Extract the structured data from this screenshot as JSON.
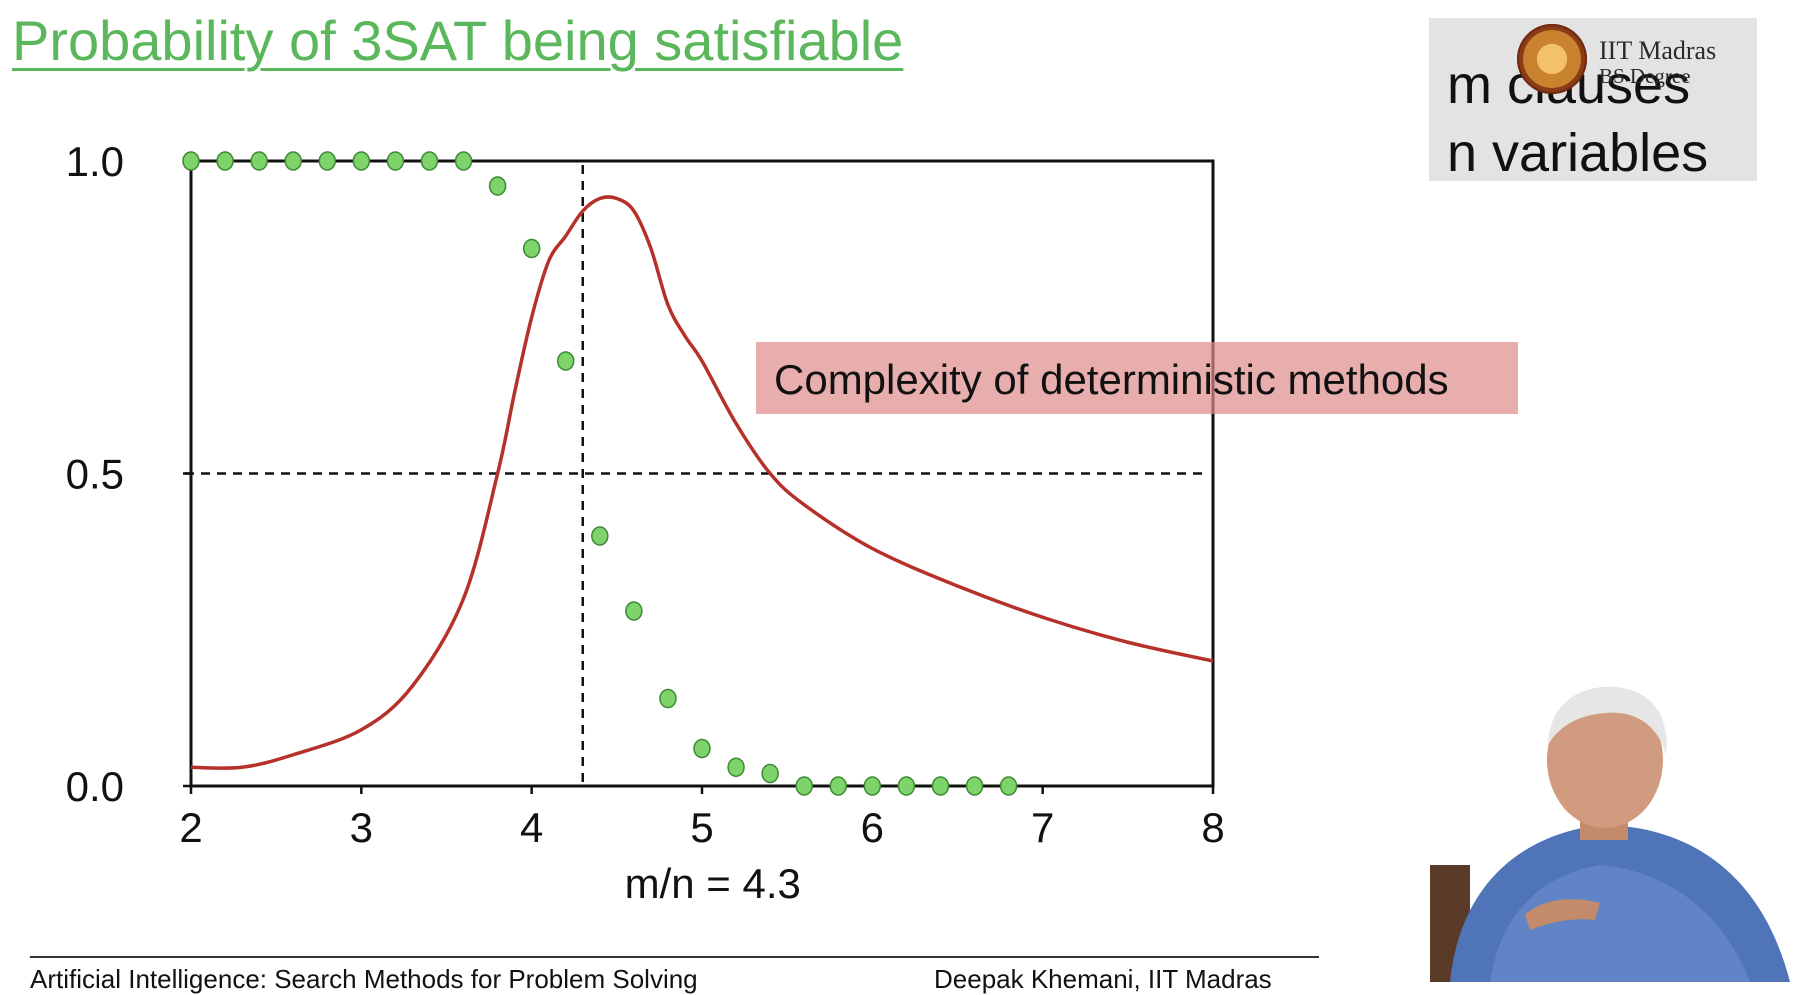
{
  "slide": {
    "title": "Probability of 3SAT being satisfiable",
    "legend": {
      "line1": "m clauses",
      "line2": "n variables"
    },
    "watermark": {
      "line1": "IIT Madras",
      "line2": "BS Degree"
    },
    "callout": "Complexity of deterministic methods",
    "footer": {
      "left": "Artificial Intelligence: Search Methods for Problem Solving",
      "right": "Deepak Khemani, IIT Madras"
    }
  },
  "chart_data": {
    "type": "scatter",
    "title": "Probability of 3SAT being satisfiable",
    "xlabel": "",
    "ylabel": "",
    "xlim": [
      2,
      8
    ],
    "ylim": [
      0,
      1
    ],
    "x_ticks": [
      "2",
      "3",
      "4",
      "5",
      "6",
      "7",
      "8"
    ],
    "y_ticks": [
      "0.0",
      "0.5",
      "1.0"
    ],
    "threshold_x": 4.3,
    "threshold_label": "m/n = 4.3",
    "threshold_y": 0.5,
    "grid": false,
    "series": [
      {
        "type": "scatter",
        "color": "#7ed36a",
        "x": [
          2.0,
          2.2,
          2.4,
          2.6,
          2.8,
          3.0,
          3.2,
          3.4,
          3.6,
          3.8,
          4.0,
          4.2,
          4.4,
          4.6,
          4.8,
          5.0,
          5.2,
          5.4,
          5.6,
          5.8,
          6.0,
          6.2,
          6.4,
          6.6,
          6.8
        ],
        "y": [
          1.0,
          1.0,
          1.0,
          1.0,
          1.0,
          1.0,
          1.0,
          1.0,
          1.0,
          0.96,
          0.86,
          0.68,
          0.4,
          0.28,
          0.14,
          0.06,
          0.03,
          0.02,
          0.0,
          0.0,
          0.0,
          0.0,
          0.0,
          0.0,
          0.0
        ]
      },
      {
        "type": "line",
        "color": "#b5312a",
        "x": [
          2.0,
          2.3,
          2.6,
          3.0,
          3.3,
          3.6,
          3.8,
          3.9,
          4.0,
          4.1,
          4.2,
          4.3,
          4.4,
          4.5,
          4.6,
          4.7,
          4.8,
          4.9,
          5.0,
          5.2,
          5.4,
          5.6,
          6.0,
          6.5,
          7.0,
          7.5,
          8.0
        ],
        "y": [
          0.03,
          0.03,
          0.05,
          0.09,
          0.16,
          0.3,
          0.5,
          0.63,
          0.75,
          0.84,
          0.88,
          0.92,
          0.94,
          0.94,
          0.92,
          0.86,
          0.77,
          0.72,
          0.68,
          0.58,
          0.5,
          0.45,
          0.38,
          0.32,
          0.27,
          0.23,
          0.2
        ]
      }
    ]
  }
}
